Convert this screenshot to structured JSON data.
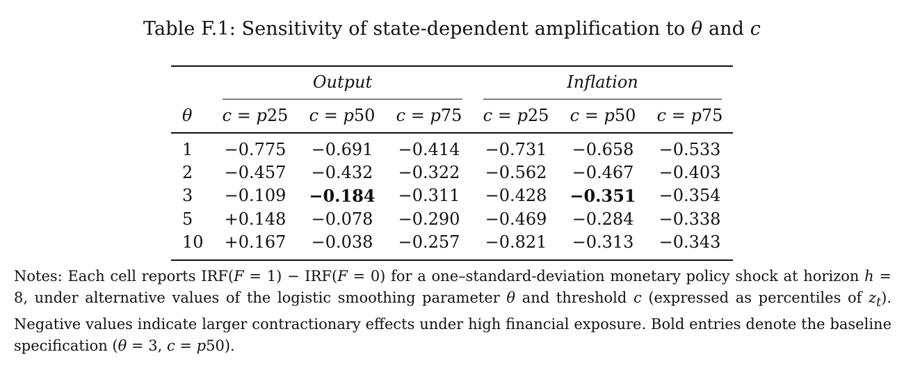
{
  "caption": {
    "prefix": "Table F.1: Sensitivity of state-dependent amplification to ",
    "theta": "θ",
    "and": " and ",
    "c": "c"
  },
  "table": {
    "theta_header": "θ",
    "groups": [
      "Output",
      "Inflation"
    ],
    "column_headers": [
      [
        "c",
        " = ",
        "p",
        "25"
      ],
      [
        "c",
        " = ",
        "p",
        "50"
      ],
      [
        "c",
        " = ",
        "p",
        "75"
      ],
      [
        "c",
        " = ",
        "p",
        "25"
      ],
      [
        "c",
        " = ",
        "p",
        "50"
      ],
      [
        "c",
        " = ",
        "p",
        "75"
      ]
    ],
    "rows": [
      {
        "theta": "1",
        "values": [
          "−0.775",
          "−0.691",
          "−0.414",
          "−0.731",
          "−0.658",
          "−0.533"
        ],
        "bold": [
          false,
          false,
          false,
          false,
          false,
          false
        ]
      },
      {
        "theta": "2",
        "values": [
          "−0.457",
          "−0.432",
          "−0.322",
          "−0.562",
          "−0.467",
          "−0.403"
        ],
        "bold": [
          false,
          false,
          false,
          false,
          false,
          false
        ]
      },
      {
        "theta": "3",
        "values": [
          "−0.109",
          "−0.184",
          "−0.311",
          "−0.428",
          "−0.351",
          "−0.354"
        ],
        "bold": [
          false,
          true,
          false,
          false,
          true,
          false
        ]
      },
      {
        "theta": "5",
        "values": [
          "+0.148",
          "−0.078",
          "−0.290",
          "−0.469",
          "−0.284",
          "−0.338"
        ],
        "bold": [
          false,
          false,
          false,
          false,
          false,
          false
        ]
      },
      {
        "theta": "10",
        "values": [
          "+0.167",
          "−0.038",
          "−0.257",
          "−0.821",
          "−0.313",
          "−0.343"
        ],
        "bold": [
          false,
          false,
          false,
          false,
          false,
          false
        ]
      }
    ]
  },
  "notes": {
    "text_1": "Notes: Each cell reports IRF(",
    "F1": "F",
    "text_2": " = 1) − IRF(",
    "F2": "F",
    "text_3": " = 0) for a one–standard-deviation monetary policy shock at horizon ",
    "h": "h",
    "text_4": " = 8, under alternative values of the logistic smoothing parameter ",
    "theta": "θ",
    "text_5": " and threshold ",
    "c": "c",
    "text_6": " (expressed as percentiles of ",
    "z": "z",
    "z_sub": "t",
    "text_7": "). Negative values indicate larger contractionary effects under high financial exposure. Bold entries denote the baseline specification (",
    "theta2": "θ",
    "text_8": " = 3, ",
    "c2": "c",
    "text_9": " = ",
    "p": "p",
    "text_10": "50)."
  }
}
